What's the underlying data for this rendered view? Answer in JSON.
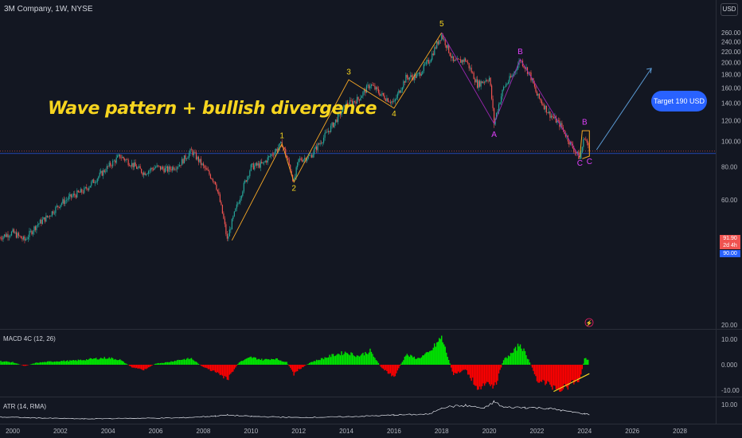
{
  "header": {
    "symbol": "3M Company, 1W, NYSE",
    "currency_button": "USD"
  },
  "annotations": {
    "headline": "Wave pattern + bullish divergence",
    "target": "Target 190 USD",
    "wave_labels": [
      {
        "label": "1",
        "date": 2011.3,
        "price": 103,
        "color": "#f7d51f"
      },
      {
        "label": "2",
        "date": 2011.8,
        "price": 65,
        "color": "#f7d51f"
      },
      {
        "label": "3",
        "date": 2014.1,
        "price": 180,
        "color": "#f7d51f"
      },
      {
        "label": "4",
        "date": 2016.0,
        "price": 125,
        "color": "#f7d51f"
      },
      {
        "label": "5",
        "date": 2018.0,
        "price": 275,
        "color": "#f7d51f"
      },
      {
        "label": "A",
        "date": 2020.2,
        "price": 104,
        "color": "#e040fb"
      },
      {
        "label": "B",
        "date": 2021.3,
        "price": 215,
        "color": "#e040fb"
      },
      {
        "label": "C",
        "date": 2023.8,
        "price": 81,
        "color": "#e040fb"
      },
      {
        "label": "B",
        "date": 2024.0,
        "price": 116,
        "color": "#e040fb"
      },
      {
        "label": "C",
        "date": 2024.2,
        "price": 82,
        "color": "#e040fb"
      }
    ],
    "event_icon": "lightning-icon"
  },
  "price_tags": {
    "last": "91.90",
    "countdown": "2d 4h",
    "line": "90.00"
  },
  "colors": {
    "background": "#131722",
    "up": "#26a69a",
    "down": "#ef5350",
    "wave_line": "#f7a825",
    "corrective_line": "#9c27b0",
    "macd_up": "#00e600",
    "macd_down": "#ff0000",
    "target_arrow": "#5b9bd5",
    "horizontal_line": "#2962ff"
  },
  "chart_data": [
    {
      "type": "candlestick",
      "title": "3M Company, 1W, NYSE",
      "xlabel": "",
      "ylabel": "",
      "x_ticks": [
        "2000",
        "2002",
        "2004",
        "2006",
        "2008",
        "2010",
        "2012",
        "2014",
        "2016",
        "2018",
        "2020",
        "2022",
        "2024",
        "2026",
        "2028"
      ],
      "y_ticks": [
        "20.00",
        "40.00",
        "60.00",
        "80.00",
        "100.00",
        "120.00",
        "140.00",
        "160.00",
        "180.00",
        "200.00",
        "220.00",
        "240.00",
        "260.00"
      ],
      "y_scale": "log",
      "xlim": [
        1999.4,
        2029.8
      ],
      "ylim": [
        20,
        288
      ],
      "series": [
        {
          "name": "price",
          "points": [
            [
              1999.4,
              43
            ],
            [
              2000.0,
              45
            ],
            [
              2000.5,
              42
            ],
            [
              2001.0,
              48
            ],
            [
              2001.5,
              52
            ],
            [
              2002.0,
              58
            ],
            [
              2002.5,
              62
            ],
            [
              2003.0,
              65
            ],
            [
              2003.5,
              72
            ],
            [
              2004.0,
              80
            ],
            [
              2004.5,
              88
            ],
            [
              2005.0,
              82
            ],
            [
              2005.5,
              76
            ],
            [
              2006.0,
              80
            ],
            [
              2006.5,
              78
            ],
            [
              2007.0,
              82
            ],
            [
              2007.5,
              92
            ],
            [
              2008.0,
              80
            ],
            [
              2008.5,
              70
            ],
            [
              2009.0,
              42
            ],
            [
              2009.5,
              60
            ],
            [
              2010.0,
              80
            ],
            [
              2010.5,
              82
            ],
            [
              2011.0,
              92
            ],
            [
              2011.3,
              98
            ],
            [
              2011.8,
              70
            ],
            [
              2012.0,
              85
            ],
            [
              2012.5,
              88
            ],
            [
              2013.0,
              102
            ],
            [
              2013.5,
              118
            ],
            [
              2014.0,
              138
            ],
            [
              2014.5,
              145
            ],
            [
              2015.0,
              165
            ],
            [
              2015.5,
              150
            ],
            [
              2016.0,
              140
            ],
            [
              2016.5,
              175
            ],
            [
              2017.0,
              178
            ],
            [
              2017.5,
              205
            ],
            [
              2018.0,
              255
            ],
            [
              2018.5,
              200
            ],
            [
              2019.0,
              205
            ],
            [
              2019.5,
              165
            ],
            [
              2020.0,
              175
            ],
            [
              2020.2,
              117
            ],
            [
              2020.6,
              160
            ],
            [
              2021.0,
              180
            ],
            [
              2021.3,
              205
            ],
            [
              2021.7,
              180
            ],
            [
              2022.0,
              150
            ],
            [
              2022.5,
              128
            ],
            [
              2023.0,
              115
            ],
            [
              2023.4,
              98
            ],
            [
              2023.8,
              86
            ],
            [
              2024.0,
              105
            ],
            [
              2024.2,
              91.9
            ]
          ]
        }
      ],
      "horizontal_lines": [
        91.9,
        90
      ]
    },
    {
      "type": "bar",
      "title": "MACD 4C (12, 26)",
      "y_ticks": [
        "10.00",
        "0.000",
        "-10.00"
      ],
      "ylim": [
        -12,
        12
      ],
      "series": [
        {
          "name": "MACD 4C (12, 26)",
          "points": [
            [
              1999.4,
              1.5
            ],
            [
              2000.0,
              1.0
            ],
            [
              2000.5,
              -0.5
            ],
            [
              2001.0,
              0.8
            ],
            [
              2001.5,
              1.2
            ],
            [
              2002.0,
              1.5
            ],
            [
              2002.5,
              1.6
            ],
            [
              2003.0,
              2.0
            ],
            [
              2003.5,
              2.5
            ],
            [
              2004.0,
              2.8
            ],
            [
              2004.5,
              2.0
            ],
            [
              2005.0,
              -1.0
            ],
            [
              2005.5,
              -2.0
            ],
            [
              2006.0,
              0.5
            ],
            [
              2006.5,
              1.0
            ],
            [
              2007.0,
              2.0
            ],
            [
              2007.5,
              2.5
            ],
            [
              2008.0,
              -1.0
            ],
            [
              2008.5,
              -3.0
            ],
            [
              2009.0,
              -6.0
            ],
            [
              2009.5,
              1.0
            ],
            [
              2010.0,
              3.0
            ],
            [
              2010.5,
              2.0
            ],
            [
              2011.0,
              2.5
            ],
            [
              2011.5,
              1.0
            ],
            [
              2011.8,
              -4.0
            ],
            [
              2012.0,
              -2.0
            ],
            [
              2012.5,
              1.0
            ],
            [
              2013.0,
              2.5
            ],
            [
              2013.5,
              4.0
            ],
            [
              2014.0,
              5.0
            ],
            [
              2014.5,
              3.5
            ],
            [
              2015.0,
              5.5
            ],
            [
              2015.5,
              -1.5
            ],
            [
              2016.0,
              -5.0
            ],
            [
              2016.5,
              4.0
            ],
            [
              2017.0,
              2.5
            ],
            [
              2017.5,
              5.0
            ],
            [
              2018.0,
              11.0
            ],
            [
              2018.5,
              -4.0
            ],
            [
              2019.0,
              -2.0
            ],
            [
              2019.5,
              -9.0
            ],
            [
              2020.0,
              -8.0
            ],
            [
              2020.2,
              -10.0
            ],
            [
              2020.6,
              2.0
            ],
            [
              2021.0,
              5.0
            ],
            [
              2021.3,
              8.5
            ],
            [
              2021.7,
              1.0
            ],
            [
              2022.0,
              -6.0
            ],
            [
              2022.5,
              -8.0
            ],
            [
              2023.0,
              -10.0
            ],
            [
              2023.4,
              -8.0
            ],
            [
              2023.8,
              -6.0
            ],
            [
              2024.0,
              2.5
            ],
            [
              2024.2,
              2.0
            ]
          ]
        }
      ],
      "divergence_line": [
        [
          2022.7,
          -10.5
        ],
        [
          2024.2,
          -3.5
        ]
      ]
    },
    {
      "type": "line",
      "title": "ATR (14, RMA)",
      "y_ticks": [
        "10.00"
      ],
      "ylim": [
        0,
        14
      ],
      "series": [
        {
          "name": "ATR (14, RMA)",
          "points": [
            [
              1999.4,
              3.5
            ],
            [
              2001.0,
              3.0
            ],
            [
              2003.0,
              2.5
            ],
            [
              2005.0,
              2.8
            ],
            [
              2007.0,
              3.0
            ],
            [
              2008.5,
              4.0
            ],
            [
              2009.0,
              4.5
            ],
            [
              2010.0,
              3.8
            ],
            [
              2012.0,
              3.2
            ],
            [
              2014.0,
              3.6
            ],
            [
              2016.0,
              4.5
            ],
            [
              2017.5,
              5.0
            ],
            [
              2018.0,
              8.5
            ],
            [
              2018.5,
              9.0
            ],
            [
              2019.0,
              9.5
            ],
            [
              2019.8,
              8.0
            ],
            [
              2020.2,
              11.5
            ],
            [
              2020.6,
              8.5
            ],
            [
              2021.5,
              8.5
            ],
            [
              2022.5,
              8.0
            ],
            [
              2023.0,
              7.0
            ],
            [
              2023.5,
              6.0
            ],
            [
              2024.0,
              5.2
            ],
            [
              2024.2,
              4.8
            ]
          ]
        }
      ]
    }
  ]
}
